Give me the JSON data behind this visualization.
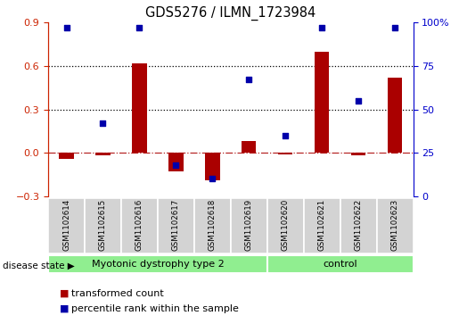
{
  "title": "GDS5276 / ILMN_1723984",
  "samples": [
    "GSM1102614",
    "GSM1102615",
    "GSM1102616",
    "GSM1102617",
    "GSM1102618",
    "GSM1102619",
    "GSM1102620",
    "GSM1102621",
    "GSM1102622",
    "GSM1102623"
  ],
  "transformed_count": [
    -0.04,
    -0.02,
    0.62,
    -0.13,
    -0.19,
    0.08,
    -0.01,
    0.7,
    -0.02,
    0.52
  ],
  "percentile_rank": [
    97,
    42,
    97,
    18,
    10,
    67,
    35,
    97,
    55,
    97
  ],
  "groups": [
    {
      "label": "Myotonic dystrophy type 2",
      "start": 0,
      "end": 6,
      "color": "#90EE90"
    },
    {
      "label": "control",
      "start": 6,
      "end": 10,
      "color": "#90EE90"
    }
  ],
  "bar_color": "#AA0000",
  "dot_color": "#0000AA",
  "ylim_left": [
    -0.3,
    0.9
  ],
  "ylim_right": [
    0,
    100
  ],
  "yticks_left": [
    -0.3,
    0.0,
    0.3,
    0.6,
    0.9
  ],
  "yticks_right": [
    0,
    25,
    50,
    75,
    100
  ],
  "hlines": [
    0.3,
    0.6
  ],
  "hline_zero": 0.0,
  "bg_color": "#FFFFFF",
  "legend_items": [
    {
      "label": "transformed count",
      "color": "#AA0000"
    },
    {
      "label": "percentile rank within the sample",
      "color": "#0000AA"
    }
  ],
  "disease_state_label": "disease state",
  "tick_color_left": "#CC2200",
  "tick_color_right": "#0000CC",
  "sample_box_color": "#D3D3D3",
  "bar_width": 0.4
}
